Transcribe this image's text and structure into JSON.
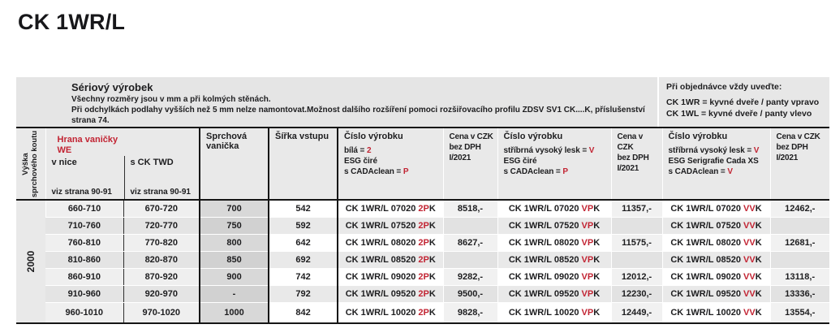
{
  "page": {
    "title": "CK 1WR/L"
  },
  "info": {
    "heading": "Sériový výrobek",
    "line1": "Všechny rozměry jsou v mm a při kolmých stěnách.",
    "line2": "Při odchylkách podlahy vyšších než 5 mm nelze namontovat.Možnost dalšího rozšíření pomoci rozšiřovacího profilu ZDSV SV1 CK....K, příslušenství",
    "line3": "strana 74.",
    "order": {
      "heading": "Při objednávce vždy uveďte:",
      "item1": "CK 1WR = kyvné dveře / panty vpravo",
      "item2": "CK 1WL = kyvné dveře / panty vlevo"
    }
  },
  "header": {
    "vyska": {
      "line1": "Výška",
      "line2": "sprchového koutu"
    },
    "hrana": {
      "title": "Hrana vaničky",
      "title2": "WE",
      "sub1": "v nice",
      "sub2": "s CK TWD",
      "ref": "viz strana 90-91"
    },
    "vanicka": "Sprchová vanička",
    "sirka": "Šířka vstupu",
    "cislo1": {
      "title": "Číslo výrobku",
      "l1a": "bílá = ",
      "l1b": "2",
      "l2": "ESG čiré",
      "l3a": "s CADAclean = ",
      "l3b": "P"
    },
    "cislo2": {
      "title": "Číslo výrobku",
      "l1a": "stříbrná vysoký lesk = ",
      "l1b": "V",
      "l2": "ESG čiré",
      "l3a": "s CADAclean = ",
      "l3b": "P"
    },
    "cislo3": {
      "title": "Číslo výrobku",
      "l1a": "stříbrná vysoký lesk = ",
      "l1b": "V",
      "l2": "ESG Serigrafie Cada XS",
      "l3a": "s CADAclean = ",
      "l3b": "V"
    },
    "cena": {
      "l1": "Cena v CZK",
      "l2": "bez DPH",
      "l3": "I/2021"
    }
  },
  "colors": {
    "accent_red": "#c22433",
    "band_gray": "#e5e5e5",
    "dark_line": "#161616"
  },
  "table": {
    "height_label": "2000",
    "rows": [
      {
        "v_nice": "660-710",
        "s_ck_twd": "670-720",
        "vanicka": "700",
        "sirka": "542",
        "c1": {
          "pre": "CK 1WR/L 07020 ",
          "red": "2P",
          "end": "K"
        },
        "p1": "8518,-",
        "c2": {
          "pre": "CK 1WR/L 07020 ",
          "red": "VP",
          "end": "K"
        },
        "p2": "11357,-",
        "c3": {
          "pre": "CK 1WR/L 07020 ",
          "red": "VV",
          "end": "K"
        },
        "p3": "12462,-"
      },
      {
        "v_nice": "710-760",
        "s_ck_twd": "720-770",
        "vanicka": "750",
        "sirka": "592",
        "c1": {
          "pre": "CK 1WR/L 07520 ",
          "red": "2P",
          "end": "K"
        },
        "p1": "",
        "c2": {
          "pre": "CK 1WR/L 07520 ",
          "red": "VP",
          "end": "K"
        },
        "p2": "",
        "c3": {
          "pre": "CK 1WR/L 07520 ",
          "red": "VV",
          "end": "K"
        },
        "p3": ""
      },
      {
        "v_nice": "760-810",
        "s_ck_twd": "770-820",
        "vanicka": "800",
        "sirka": "642",
        "c1": {
          "pre": "CK 1WR/L 08020 ",
          "red": "2P",
          "end": "K"
        },
        "p1": "8627,-",
        "c2": {
          "pre": "CK 1WR/L 08020 ",
          "red": "VP",
          "end": "K"
        },
        "p2": "11575,-",
        "c3": {
          "pre": "CK 1WR/L 08020 ",
          "red": "VV",
          "end": "K"
        },
        "p3": "12681,-"
      },
      {
        "v_nice": "810-860",
        "s_ck_twd": "820-870",
        "vanicka": "850",
        "sirka": "692",
        "c1": {
          "pre": "CK 1WR/L 08520 ",
          "red": "2P",
          "end": "K"
        },
        "p1": "",
        "c2": {
          "pre": "CK 1WR/L 08520 ",
          "red": "VP",
          "end": "K"
        },
        "p2": "",
        "c3": {
          "pre": "CK 1WR/L 08520 ",
          "red": "VV",
          "end": "K"
        },
        "p3": ""
      },
      {
        "v_nice": "860-910",
        "s_ck_twd": "870-920",
        "vanicka": "900",
        "sirka": "742",
        "c1": {
          "pre": "CK 1WR/L 09020 ",
          "red": "2P",
          "end": "K"
        },
        "p1": "9282,-",
        "c2": {
          "pre": "CK 1WR/L 09020 ",
          "red": "VP",
          "end": "K"
        },
        "p2": "12012,-",
        "c3": {
          "pre": "CK 1WR/L 09020 ",
          "red": "VV",
          "end": "K"
        },
        "p3": "13118,-"
      },
      {
        "v_nice": "910-960",
        "s_ck_twd": "920-970",
        "vanicka": "-",
        "sirka": "792",
        "c1": {
          "pre": "CK 1WR/L 09520 ",
          "red": "2P",
          "end": "K"
        },
        "p1": "9500,-",
        "c2": {
          "pre": "CK 1WR/L 09520 ",
          "red": "VP",
          "end": "K"
        },
        "p2": "12230,-",
        "c3": {
          "pre": "CK 1WR/L 09520 ",
          "red": "VV",
          "end": "K"
        },
        "p3": "13336,-"
      },
      {
        "v_nice": "960-1010",
        "s_ck_twd": "970-1020",
        "vanicka": "1000",
        "sirka": "842",
        "c1": {
          "pre": "CK 1WR/L 10020 ",
          "red": "2P",
          "end": "K"
        },
        "p1": "9828,-",
        "c2": {
          "pre": "CK 1WR/L 10020 ",
          "red": "VP",
          "end": "K"
        },
        "p2": "12449,-",
        "c3": {
          "pre": "CK 1WR/L 10020 ",
          "red": "VV",
          "end": "K"
        },
        "p3": "13554,-"
      }
    ]
  }
}
